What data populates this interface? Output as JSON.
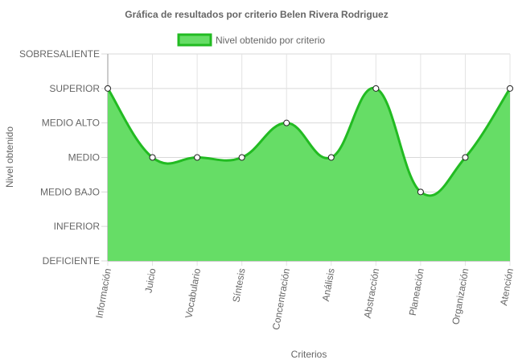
{
  "chart_data": {
    "type": "area",
    "title": "Gráfica de resultados por criterio Belen Rivera Rodriguez",
    "xlabel": "Criterios",
    "ylabel": "Nivel obtenido",
    "legend": {
      "position": "top",
      "entries": [
        "Nivel obtenido por criterio"
      ]
    },
    "y_levels": [
      "DEFICIENTE",
      "INFERIOR",
      "MEDIO BAJO",
      "MEDIO",
      "MEDIO ALTO",
      "SUPERIOR",
      "SOBRESALIENTE"
    ],
    "categories": [
      "Información",
      "Juicio",
      "Vocabulario",
      "Síntesis",
      "Concentración",
      "Análisis",
      "Abstracción",
      "Planeación",
      "Organización",
      "Atención"
    ],
    "series": [
      {
        "name": "Nivel obtenido por criterio",
        "values": [
          "SUPERIOR",
          "MEDIO",
          "MEDIO",
          "MEDIO",
          "MEDIO ALTO",
          "MEDIO",
          "SUPERIOR",
          "MEDIO BAJO",
          "MEDIO",
          "SUPERIOR"
        ],
        "fill_color": "#66dd66",
        "line_color": "#22bb22"
      }
    ],
    "grid": true,
    "curve": "smooth"
  }
}
